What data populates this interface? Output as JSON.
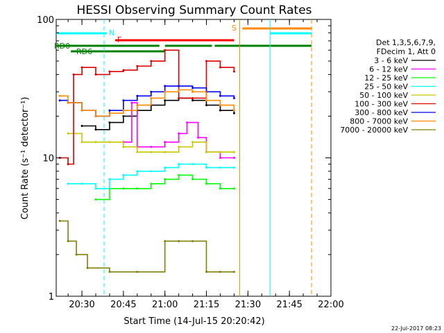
{
  "chart_data": {
    "type": "line",
    "title": "HESSI Observing Summary Count Rates",
    "xlabel": "Start Time (14-Jul-15 20:20:42)",
    "ylabel": "Count Rate (s⁻¹ detector⁻¹)",
    "xlim": [
      "20:20:42",
      "22:00:00"
    ],
    "ylim": [
      1,
      100
    ],
    "yscale": "log",
    "x_ticks": [
      "20:30",
      "20:45",
      "21:00",
      "21:15",
      "21:30",
      "21:45",
      "22:00"
    ],
    "y_ticks": [
      "1",
      "10",
      "100"
    ],
    "legend_position": "right",
    "legend_header": [
      "Det 1,3,5,6,7,9,",
      "FDecim 1, Att 0"
    ],
    "footer_date": "22-Jul-2017 08:23",
    "series": [
      {
        "name": "3 - 6 keV",
        "color": "#000000",
        "x": [
          "20:30",
          "20:35",
          "20:40",
          "20:45",
          "20:50",
          "20:55",
          "21:00",
          "21:05",
          "21:10",
          "21:15",
          "21:20",
          "21:25"
        ],
        "values": [
          17,
          16,
          18,
          20,
          22,
          24,
          26,
          27,
          26,
          24,
          22,
          21
        ]
      },
      {
        "name": "6 - 12 keV",
        "color": "#ff00ff",
        "x": [
          "20:45",
          "20:48",
          "20:50",
          "20:55",
          "21:00",
          "21:05",
          "21:08",
          "21:12",
          "21:15",
          "21:20",
          "21:25"
        ],
        "values": [
          13,
          25,
          12,
          12,
          13,
          15,
          18,
          14,
          11,
          10,
          10
        ]
      },
      {
        "name": "12 - 25 keV",
        "color": "#00ff00",
        "x": [
          "20:35",
          "20:40",
          "20:45",
          "20:50",
          "20:55",
          "21:00",
          "21:05",
          "21:10",
          "21:15",
          "21:20",
          "21:25"
        ],
        "values": [
          5,
          6,
          6,
          6,
          6.5,
          7,
          7.5,
          7,
          6.5,
          6,
          6
        ]
      },
      {
        "name": "25 - 50 keV",
        "color": "#00ffff",
        "x": [
          "20:25",
          "20:30",
          "20:35",
          "20:40",
          "20:45",
          "20:50",
          "20:55",
          "21:00",
          "21:05",
          "21:10",
          "21:15",
          "21:20",
          "21:25"
        ],
        "values": [
          6.5,
          6.5,
          6,
          7,
          7.5,
          8,
          8,
          8.5,
          9,
          9,
          8.5,
          8.5,
          8.5
        ]
      },
      {
        "name": "50 - 100 keV",
        "color": "#c8c800",
        "x": [
          "20:25",
          "20:30",
          "20:35",
          "20:40",
          "20:45",
          "20:50",
          "20:55",
          "21:00",
          "21:05",
          "21:10",
          "21:15",
          "21:20",
          "21:25"
        ],
        "values": [
          15,
          13,
          13,
          13,
          12,
          11,
          11,
          11,
          12,
          13,
          11,
          11,
          11
        ]
      },
      {
        "name": "100 - 300 keV",
        "color": "#dd0000",
        "x": [
          "20:22",
          "20:25",
          "20:27",
          "20:30",
          "20:35",
          "20:40",
          "20:45",
          "20:50",
          "20:55",
          "21:00",
          "21:05",
          "21:10",
          "21:15",
          "21:20",
          "21:25"
        ],
        "values": [
          10,
          9,
          40,
          45,
          40,
          42,
          43,
          46,
          50,
          60,
          27,
          27,
          50,
          45,
          42
        ]
      },
      {
        "name": "300 - 800 keV",
        "color": "#0000ee",
        "x": [
          "20:22",
          "20:25",
          "20:30",
          "20:35",
          "20:40",
          "20:45",
          "20:50",
          "20:55",
          "21:00",
          "21:05",
          "21:10",
          "21:15",
          "21:20",
          "21:25"
        ],
        "values": [
          26,
          25,
          22,
          20,
          22,
          26,
          28,
          30,
          33,
          33,
          32,
          30,
          28,
          27
        ]
      },
      {
        "name": "800 - 7000 keV",
        "color": "#ff8800",
        "x": [
          "20:22",
          "20:25",
          "20:30",
          "20:35",
          "20:40",
          "20:45",
          "20:50",
          "20:55",
          "21:00",
          "21:05",
          "21:10",
          "21:15",
          "21:20",
          "21:25"
        ],
        "values": [
          28,
          25,
          22,
          20,
          21,
          22,
          24,
          27,
          30,
          31,
          30,
          26,
          24,
          22
        ]
      },
      {
        "name": "7000 - 20000 keV",
        "color": "#808000",
        "x": [
          "20:22",
          "20:25",
          "20:28",
          "20:32",
          "20:40",
          "20:50",
          "21:00",
          "21:05",
          "21:10",
          "21:15",
          "21:20",
          "21:25"
        ],
        "values": [
          3.5,
          2.5,
          2,
          1.6,
          1.5,
          1.5,
          2.5,
          2.5,
          2.5,
          1.5,
          1.5,
          1.5
        ]
      }
    ],
    "flag_bars": [
      {
        "label": "N",
        "color": "#00ffff",
        "ranges": [
          [
            "20:20:42",
            "20:39"
          ],
          [
            "21:38",
            "21:53"
          ]
        ]
      },
      {
        "label": "F",
        "color": "#ff0000",
        "ranges": [
          [
            "20:42",
            "21:25"
          ]
        ]
      },
      {
        "label": "S",
        "color": "#ff8800",
        "ranges": [
          [
            "21:28",
            "21:53"
          ]
        ]
      },
      {
        "label": "RD0",
        "color": "#008000",
        "ranges": [
          [
            "20:20:42",
            "20:58"
          ],
          [
            "21:00",
            "21:17"
          ],
          [
            "21:18",
            "21:53"
          ]
        ]
      },
      {
        "label": "RD6",
        "color": "#008000",
        "ranges": [
          [
            "20:26",
            "21:00"
          ]
        ]
      }
    ],
    "vertical_markers": [
      {
        "time": "20:38",
        "color": "#00ffff",
        "style": "dashed"
      },
      {
        "time": "21:27",
        "color": "#ff8800",
        "style": "solid"
      },
      {
        "time": "21:38",
        "color": "#00ffff",
        "style": "solid"
      },
      {
        "time": "21:53",
        "color": "#ff8800",
        "style": "dashed"
      }
    ]
  }
}
